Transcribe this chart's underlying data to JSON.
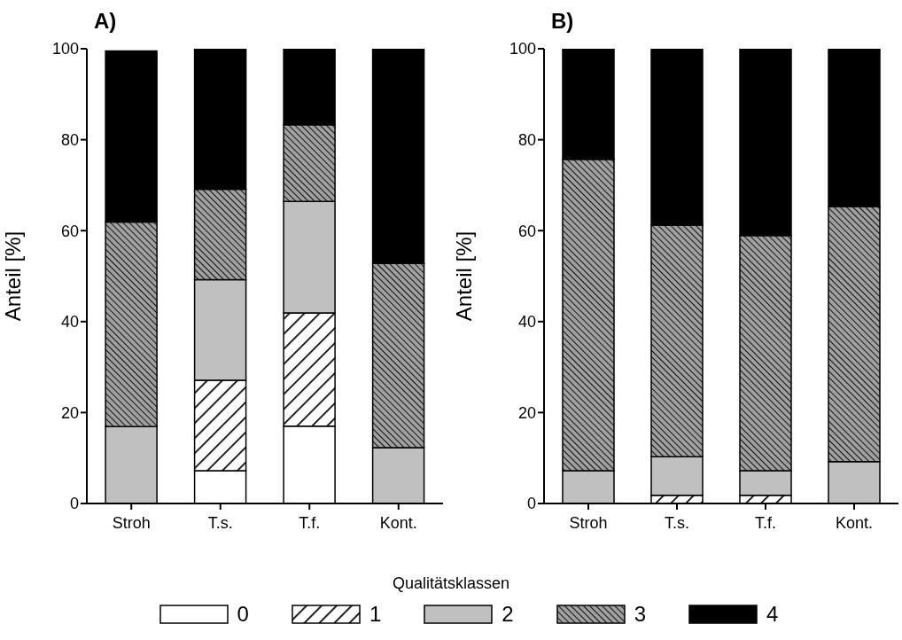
{
  "chart_data": [
    {
      "type": "bar",
      "title": "A)",
      "ylabel": "Anteil [%]",
      "legend_title": "Qualitätsklassen",
      "legend": "bottom",
      "stacked": true,
      "categories": [
        "Stroh",
        "T.s.",
        "T.f.",
        "Kont."
      ],
      "ylim": [
        0,
        100
      ],
      "yticks": [
        0,
        20,
        40,
        60,
        80,
        100
      ],
      "series": [
        {
          "name": "0",
          "color": "#ffffff",
          "values": [
            null,
            7.2,
            17,
            0
          ]
        },
        {
          "name": "1",
          "color": "#000000",
          "values": [
            0,
            19.9,
            24.9,
            0
          ]
        },
        {
          "name": "2",
          "color": "#c0c0c0",
          "values": [
            16.9,
            22.1,
            24.5,
            12.3
          ]
        },
        {
          "name": "3",
          "color": "#000000",
          "values": [
            45,
            19.9,
            16.9,
            40.5
          ]
        },
        {
          "name": "4",
          "color": "#000000",
          "values": [
            37.6,
            30.9,
            16.7,
            47.2
          ]
        }
      ]
    },
    {
      "type": "bar",
      "title": "B)",
      "ylabel": "Anteil [%]",
      "stacked": true,
      "categories": [
        "Stroh",
        "T.s.",
        "T.f.",
        "Kont."
      ],
      "ylim": [
        0,
        100
      ],
      "yticks": [
        0,
        20,
        40,
        60,
        80,
        100
      ],
      "series": [
        {
          "name": "0",
          "color": "#ffffff",
          "values": [
            0,
            0,
            0,
            0
          ]
        },
        {
          "name": "1",
          "color": "#000000",
          "values": [
            0,
            1.8,
            1.8,
            0
          ]
        },
        {
          "name": "2",
          "color": "#c0c0c0",
          "values": [
            7.2,
            8.5,
            5.4,
            9.2
          ]
        },
        {
          "name": "3",
          "color": "#000000",
          "values": [
            68.5,
            50.9,
            51.7,
            56.1
          ]
        },
        {
          "name": "4",
          "color": "#000000",
          "values": [
            24.3,
            38.8,
            41.1,
            34.7
          ]
        }
      ]
    }
  ]
}
